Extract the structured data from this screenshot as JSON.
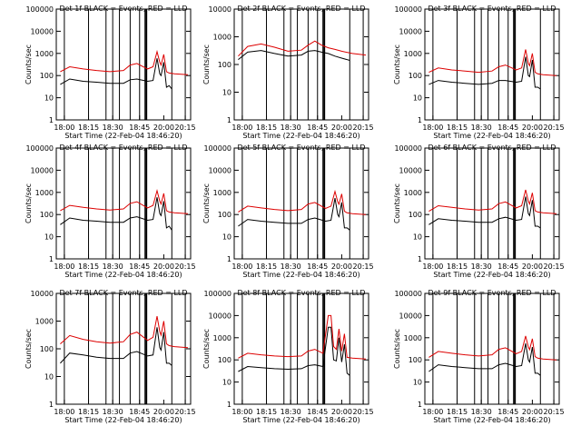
{
  "figure": {
    "xlabel": "Start Time (22-Feb-04 18:46:20)",
    "ylabel": "Counts/sec",
    "x_ticks": [
      "18:00",
      "18:15",
      "18:30",
      "18:45",
      "20:00",
      "20:15"
    ],
    "colors": {
      "events": "#000000",
      "lld": "#dd0000"
    }
  },
  "chart_data": [
    {
      "type": "line",
      "title": "Det 1f BLACK = Events, RED = LLD",
      "yscale": "log",
      "ylim": [
        1,
        100000
      ],
      "y_ticks": [
        "1",
        "10",
        "100",
        "1000",
        "10000",
        "100000"
      ],
      "xlim": [
        0,
        100
      ],
      "series": [
        {
          "name": "Events",
          "color": "#000000",
          "x": [
            3,
            10,
            20,
            30,
            40,
            50,
            55,
            60,
            68,
            72,
            75,
            77,
            78,
            80,
            82,
            84,
            86
          ],
          "y": [
            40,
            70,
            55,
            50,
            45,
            45,
            65,
            70,
            55,
            60,
            600,
            120,
            100,
            400,
            30,
            35,
            25
          ]
        },
        {
          "name": "LLD",
          "color": "#dd0000",
          "x": [
            3,
            10,
            20,
            30,
            40,
            50,
            55,
            60,
            68,
            72,
            75,
            77,
            78,
            80,
            82,
            84,
            88,
            98
          ],
          "y": [
            150,
            250,
            200,
            170,
            150,
            170,
            300,
            350,
            200,
            250,
            1200,
            400,
            300,
            900,
            150,
            130,
            120,
            110
          ]
        }
      ]
    },
    {
      "type": "line",
      "title": "Det 2f BLACK = Events, RED = LLD",
      "yscale": "log",
      "ylim": [
        1,
        10000
      ],
      "y_ticks": [
        "1",
        "10",
        "100",
        "1000",
        "10000"
      ],
      "xlim": [
        0,
        100
      ],
      "series": [
        {
          "name": "Events",
          "color": "#000000",
          "x": [
            3,
            10,
            20,
            30,
            40,
            50,
            55,
            60,
            65,
            70,
            75,
            80,
            86
          ],
          "y": [
            150,
            280,
            320,
            250,
            200,
            220,
            300,
            320,
            280,
            250,
            200,
            170,
            140
          ]
        },
        {
          "name": "LLD",
          "color": "#dd0000",
          "x": [
            3,
            10,
            20,
            30,
            40,
            50,
            55,
            60,
            65,
            70,
            75,
            80,
            88,
            98
          ],
          "y": [
            200,
            450,
            550,
            420,
            300,
            330,
            500,
            700,
            500,
            400,
            350,
            300,
            250,
            220
          ]
        }
      ]
    },
    {
      "type": "line",
      "title": "Det 3f BLACK = Events, RED = LLD",
      "yscale": "log",
      "ylim": [
        1,
        100000
      ],
      "y_ticks": [
        "1",
        "10",
        "100",
        "1000",
        "10000",
        "100000"
      ],
      "xlim": [
        0,
        100
      ],
      "series": [
        {
          "name": "Events",
          "color": "#000000",
          "x": [
            3,
            10,
            20,
            30,
            40,
            50,
            55,
            60,
            68,
            72,
            75,
            77,
            78,
            80,
            82,
            84,
            86
          ],
          "y": [
            40,
            60,
            50,
            45,
            40,
            45,
            60,
            60,
            50,
            55,
            700,
            100,
            90,
            500,
            30,
            30,
            25
          ]
        },
        {
          "name": "LLD",
          "color": "#dd0000",
          "x": [
            3,
            10,
            20,
            30,
            40,
            50,
            55,
            60,
            68,
            72,
            75,
            77,
            78,
            80,
            82,
            84,
            88,
            98
          ],
          "y": [
            140,
            220,
            180,
            160,
            140,
            160,
            250,
            300,
            180,
            220,
            1500,
            350,
            280,
            1000,
            140,
            120,
            110,
            100
          ]
        }
      ]
    },
    {
      "type": "line",
      "title": "Det 4f BLACK = Events, RED = LLD",
      "yscale": "log",
      "ylim": [
        1,
        100000
      ],
      "y_ticks": [
        "1",
        "10",
        "100",
        "1000",
        "10000",
        "100000"
      ],
      "xlim": [
        0,
        100
      ],
      "series": [
        {
          "name": "Events",
          "color": "#000000",
          "x": [
            3,
            10,
            20,
            30,
            40,
            50,
            55,
            60,
            68,
            72,
            75,
            77,
            78,
            80,
            82,
            84,
            86
          ],
          "y": [
            35,
            70,
            55,
            50,
            45,
            45,
            70,
            80,
            55,
            60,
            600,
            110,
            90,
            400,
            25,
            30,
            20
          ]
        },
        {
          "name": "LLD",
          "color": "#dd0000",
          "x": [
            3,
            10,
            20,
            30,
            40,
            50,
            55,
            60,
            68,
            72,
            75,
            77,
            78,
            80,
            82,
            84,
            88,
            98
          ],
          "y": [
            150,
            260,
            210,
            180,
            160,
            180,
            320,
            380,
            200,
            260,
            1200,
            400,
            300,
            900,
            150,
            130,
            120,
            110
          ]
        }
      ]
    },
    {
      "type": "line",
      "title": "Det 5f BLACK = Events, RED = LLD",
      "yscale": "log",
      "ylim": [
        1,
        100000
      ],
      "y_ticks": [
        "1",
        "10",
        "100",
        "1000",
        "10000",
        "100000"
      ],
      "xlim": [
        0,
        100
      ],
      "series": [
        {
          "name": "Events",
          "color": "#000000",
          "x": [
            3,
            10,
            20,
            30,
            40,
            50,
            55,
            60,
            68,
            72,
            75,
            77,
            78,
            80,
            82,
            84,
            86
          ],
          "y": [
            30,
            60,
            50,
            45,
            40,
            40,
            60,
            70,
            50,
            55,
            550,
            100,
            80,
            350,
            25,
            25,
            20
          ]
        },
        {
          "name": "LLD",
          "color": "#dd0000",
          "x": [
            3,
            10,
            20,
            30,
            40,
            50,
            55,
            60,
            68,
            72,
            75,
            77,
            78,
            80,
            82,
            84,
            88,
            98
          ],
          "y": [
            130,
            240,
            200,
            170,
            150,
            170,
            300,
            350,
            190,
            240,
            1100,
            380,
            290,
            850,
            140,
            120,
            110,
            100
          ]
        }
      ]
    },
    {
      "type": "line",
      "title": "Det 6f BLACK = Events, RED = LLD",
      "yscale": "log",
      "ylim": [
        1,
        100000
      ],
      "y_ticks": [
        "1",
        "10",
        "100",
        "1000",
        "10000",
        "100000"
      ],
      "xlim": [
        0,
        100
      ],
      "series": [
        {
          "name": "Events",
          "color": "#000000",
          "x": [
            3,
            10,
            20,
            30,
            40,
            50,
            55,
            60,
            68,
            72,
            75,
            77,
            78,
            80,
            82,
            84,
            86
          ],
          "y": [
            35,
            65,
            55,
            50,
            45,
            45,
            65,
            75,
            55,
            60,
            650,
            110,
            90,
            450,
            30,
            30,
            25
          ]
        },
        {
          "name": "LLD",
          "color": "#dd0000",
          "x": [
            3,
            10,
            20,
            30,
            40,
            50,
            55,
            60,
            68,
            72,
            75,
            77,
            78,
            80,
            82,
            84,
            88,
            98
          ],
          "y": [
            140,
            250,
            210,
            180,
            160,
            180,
            310,
            370,
            200,
            250,
            1300,
            400,
            300,
            950,
            150,
            130,
            120,
            110
          ]
        }
      ]
    },
    {
      "type": "line",
      "title": "Det 7f BLACK = Events, RED = LLD",
      "yscale": "log",
      "ylim": [
        1,
        10000
      ],
      "y_ticks": [
        "1",
        "10",
        "100",
        "1000",
        "10000"
      ],
      "xlim": [
        0,
        100
      ],
      "series": [
        {
          "name": "Events",
          "color": "#000000",
          "x": [
            3,
            10,
            20,
            30,
            40,
            50,
            55,
            60,
            68,
            72,
            75,
            77,
            78,
            80,
            82,
            84,
            86
          ],
          "y": [
            30,
            70,
            60,
            50,
            45,
            45,
            70,
            80,
            55,
            60,
            600,
            110,
            90,
            400,
            30,
            30,
            25
          ]
        },
        {
          "name": "LLD",
          "color": "#dd0000",
          "x": [
            3,
            10,
            20,
            30,
            40,
            50,
            55,
            60,
            68,
            72,
            75,
            77,
            78,
            80,
            82,
            84,
            88,
            98
          ],
          "y": [
            150,
            300,
            220,
            180,
            160,
            180,
            330,
            400,
            200,
            260,
            1500,
            420,
            310,
            1000,
            150,
            130,
            120,
            110
          ]
        }
      ]
    },
    {
      "type": "line",
      "title": "Det 8f BLACK = Events, RED = LLD",
      "yscale": "log",
      "ylim": [
        1,
        100000
      ],
      "y_ticks": [
        "1",
        "10",
        "100",
        "1000",
        "10000",
        "100000"
      ],
      "xlim": [
        0,
        100
      ],
      "series": [
        {
          "name": "Events",
          "color": "#000000",
          "x": [
            3,
            10,
            20,
            30,
            40,
            50,
            55,
            60,
            66,
            70,
            72,
            74,
            76,
            78,
            80,
            82,
            84,
            86
          ],
          "y": [
            30,
            50,
            45,
            40,
            38,
            40,
            55,
            60,
            50,
            3000,
            3000,
            100,
            90,
            1000,
            80,
            500,
            25,
            20
          ]
        },
        {
          "name": "LLD",
          "color": "#dd0000",
          "x": [
            3,
            10,
            20,
            30,
            40,
            50,
            55,
            60,
            66,
            70,
            72,
            74,
            76,
            78,
            80,
            82,
            84,
            88,
            98
          ],
          "y": [
            120,
            200,
            170,
            150,
            140,
            150,
            250,
            300,
            200,
            10000,
            10000,
            400,
            300,
            2500,
            250,
            1500,
            130,
            120,
            110
          ]
        }
      ]
    },
    {
      "type": "line",
      "title": "Det 9f BLACK = Events, RED = LLD",
      "yscale": "log",
      "ylim": [
        1,
        100000
      ],
      "y_ticks": [
        "1",
        "10",
        "100",
        "1000",
        "10000",
        "100000"
      ],
      "xlim": [
        0,
        100
      ],
      "series": [
        {
          "name": "Events",
          "color": "#000000",
          "x": [
            3,
            10,
            20,
            30,
            40,
            50,
            55,
            60,
            68,
            72,
            75,
            77,
            78,
            80,
            82,
            84,
            86
          ],
          "y": [
            30,
            60,
            50,
            45,
            40,
            40,
            60,
            70,
            50,
            55,
            550,
            100,
            80,
            380,
            25,
            25,
            20
          ]
        },
        {
          "name": "LLD",
          "color": "#dd0000",
          "x": [
            3,
            10,
            20,
            30,
            40,
            50,
            55,
            60,
            68,
            72,
            75,
            77,
            78,
            80,
            82,
            84,
            88,
            98
          ],
          "y": [
            130,
            240,
            200,
            170,
            150,
            170,
            300,
            350,
            190,
            240,
            1200,
            380,
            290,
            900,
            140,
            120,
            110,
            100
          ]
        }
      ]
    }
  ]
}
